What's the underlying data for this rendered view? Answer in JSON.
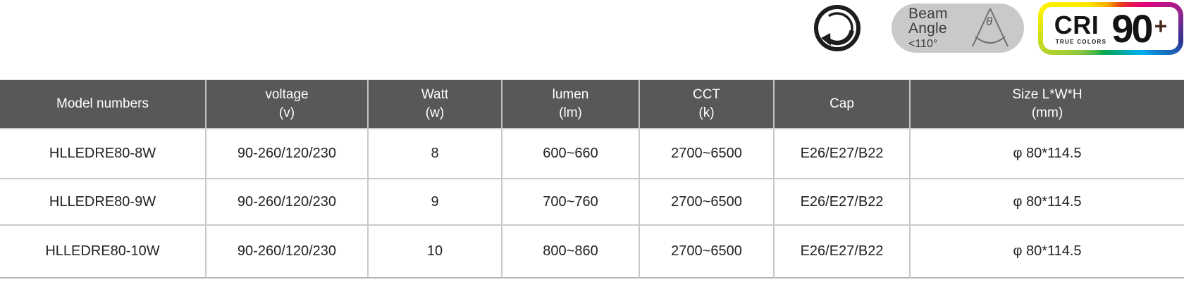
{
  "badges": {
    "dimmable": {
      "icon": "dimmable-knob-icon"
    },
    "beam_angle": {
      "title_line1": "Beam",
      "title_line2": "Angle",
      "value": "<110°",
      "symbol": "θ"
    },
    "cri": {
      "label": "CRI",
      "value": "90",
      "plus": "+",
      "subtitle": "TRUE COLORS"
    }
  },
  "table": {
    "headers": [
      {
        "line1": "Model numbers",
        "line2": ""
      },
      {
        "line1": "voltage",
        "line2": "(v)"
      },
      {
        "line1": "Watt",
        "line2": "(w)"
      },
      {
        "line1": "lumen",
        "line2": "(lm)"
      },
      {
        "line1": "CCT",
        "line2": "(k)"
      },
      {
        "line1": "Cap",
        "line2": ""
      },
      {
        "line1": "Size L*W*H",
        "line2": "(mm)"
      }
    ],
    "rows": [
      [
        "HLLEDRE80-8W",
        "90-260/120/230",
        "8",
        "600~660",
        "2700~6500",
        "E26/E27/B22",
        "φ 80*114.5"
      ],
      [
        "HLLEDRE80-9W",
        "90-260/120/230",
        "9",
        "700~760",
        "2700~6500",
        "E26/E27/B22",
        "φ 80*114.5"
      ],
      [
        "HLLEDRE80-10W",
        "90-260/120/230",
        "10",
        "800~860",
        "2700~6500",
        "E26/E27/B22",
        "φ 80*114.5"
      ]
    ]
  },
  "colors": {
    "header_bg": "#595757",
    "grid_border": "#c9c9c9",
    "bottom_border": "#b3b3b3",
    "body_text": "#231f20",
    "pill_bg": "#c9c9ca",
    "icon_ink": "#1d1d1b",
    "cri_plus": "#45291a"
  }
}
